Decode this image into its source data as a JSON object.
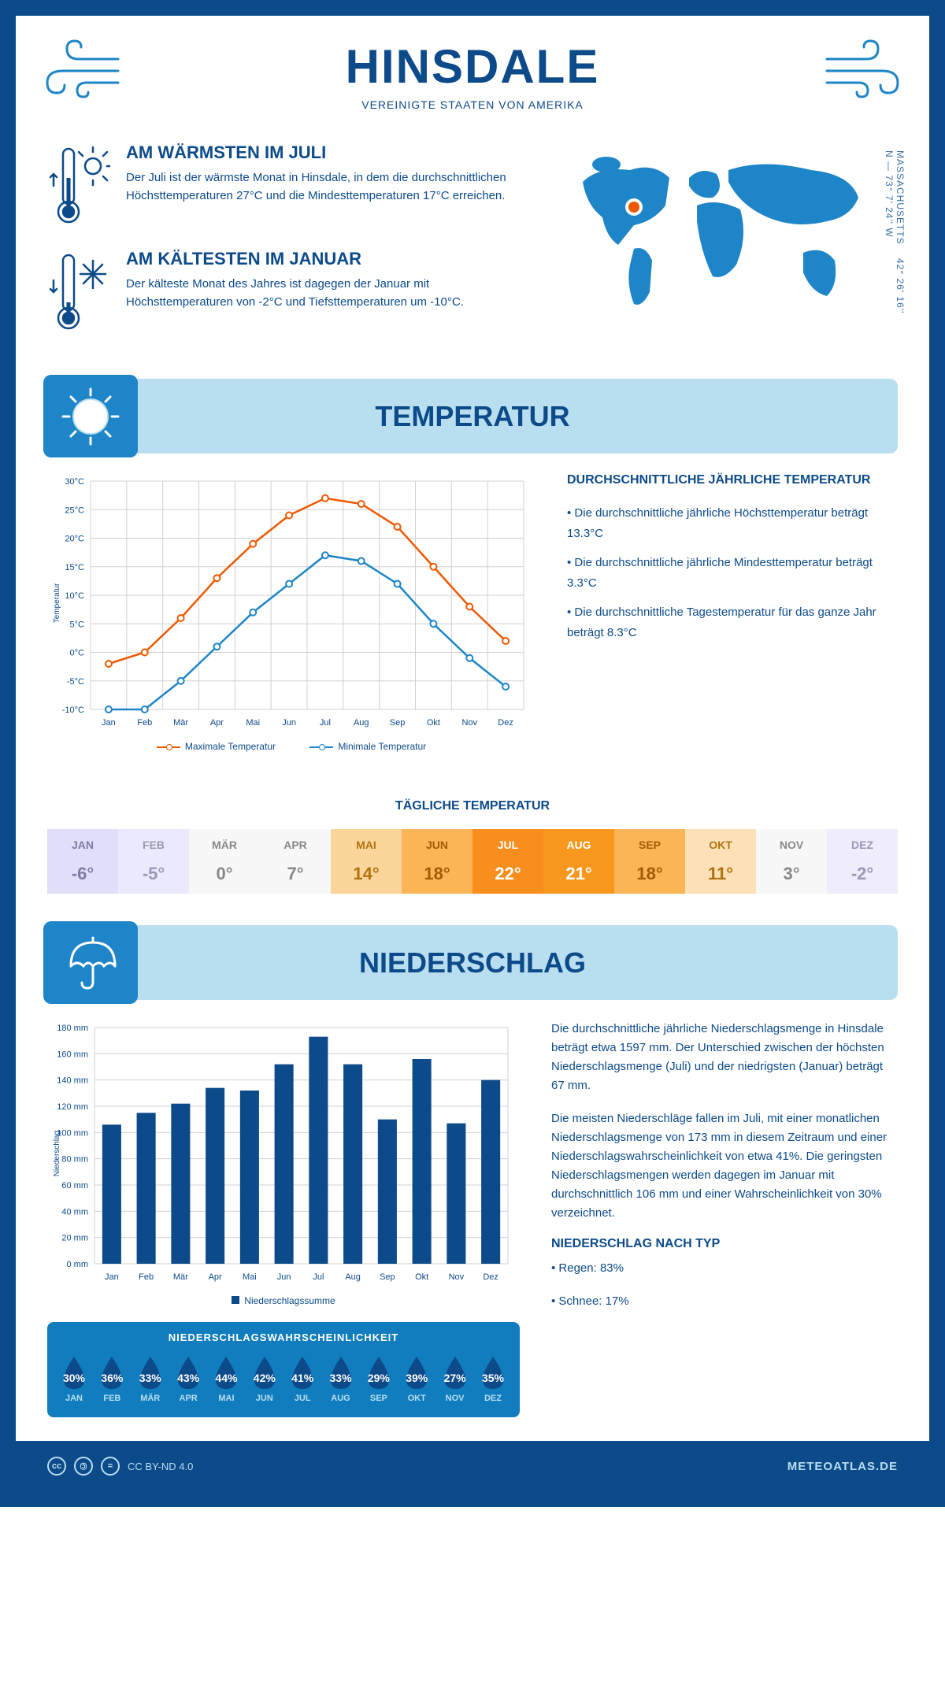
{
  "header": {
    "title": "HINSDALE",
    "subtitle": "VEREINIGTE STAATEN VON AMERIKA"
  },
  "coords": {
    "text": "42° 26' 16'' N — 73° 7' 24'' W",
    "region": "MASSACHUSETTS"
  },
  "hot": {
    "title": "AM WÄRMSTEN IM JULI",
    "body": "Der Juli ist der wärmste Monat in Hinsdale, in dem die durchschnittlichen Höchsttemperaturen 27°C und die Mindesttemperaturen 17°C erreichen."
  },
  "cold": {
    "title": "AM KÄLTESTEN IM JANUAR",
    "body": "Der kälteste Monat des Jahres ist dagegen der Januar mit Höchsttemperaturen von -2°C und Tiefsttemperaturen um -10°C."
  },
  "temp_section_title": "TEMPERATUR",
  "temp_chart": {
    "months": [
      "Jan",
      "Feb",
      "Mär",
      "Apr",
      "Mai",
      "Jun",
      "Jul",
      "Aug",
      "Sep",
      "Okt",
      "Nov",
      "Dez"
    ],
    "max": [
      -2,
      0,
      6,
      13,
      19,
      24,
      27,
      26,
      22,
      15,
      8,
      2
    ],
    "min": [
      -10,
      -10,
      -5,
      1,
      7,
      12,
      17,
      16,
      12,
      5,
      -1,
      -6
    ],
    "max_color": "#ed5903",
    "min_color": "#1e85c8",
    "ymin": -10,
    "ymax": 30,
    "ystep": 5,
    "yaxis_label": "Temperatur",
    "grid_color": "#d0d0d0",
    "legend_max": "Maximale Temperatur",
    "legend_min": "Minimale Temperatur"
  },
  "temp_text": {
    "title": "DURCHSCHNITTLICHE JÄHRLICHE TEMPERATUR",
    "b1": "• Die durchschnittliche jährliche Höchsttemperatur beträgt 13.3°C",
    "b2": "• Die durchschnittliche jährliche Mindesttemperatur beträgt 3.3°C",
    "b3": "• Die durchschnittliche Tagestemperatur für das ganze Jahr beträgt 8.3°C"
  },
  "daily_temp_title": "TÄGLICHE TEMPERATUR",
  "daily_temps": [
    {
      "m": "JAN",
      "v": "-6°",
      "bg": "#e0defa",
      "fg": "#7d7ca5"
    },
    {
      "m": "FEB",
      "v": "-5°",
      "bg": "#ebeafc",
      "fg": "#9a98b8"
    },
    {
      "m": "MÄR",
      "v": "0°",
      "bg": "#f7f7f7",
      "fg": "#888888"
    },
    {
      "m": "APR",
      "v": "7°",
      "bg": "#f7f7f7",
      "fg": "#888888"
    },
    {
      "m": "MAI",
      "v": "14°",
      "bg": "#fcd59b",
      "fg": "#b07310"
    },
    {
      "m": "JUN",
      "v": "18°",
      "bg": "#fab557",
      "fg": "#a35c05"
    },
    {
      "m": "JUL",
      "v": "22°",
      "bg": "#f78e1e",
      "fg": "#ffffff"
    },
    {
      "m": "AUG",
      "v": "21°",
      "bg": "#f7971e",
      "fg": "#ffffff"
    },
    {
      "m": "SEP",
      "v": "18°",
      "bg": "#fab557",
      "fg": "#a35c05"
    },
    {
      "m": "OKT",
      "v": "11°",
      "bg": "#fce0b7",
      "fg": "#b07310"
    },
    {
      "m": "NOV",
      "v": "3°",
      "bg": "#f7f7f7",
      "fg": "#888888"
    },
    {
      "m": "DEZ",
      "v": "-2°",
      "bg": "#efedfc",
      "fg": "#9a98b8"
    }
  ],
  "precip_section_title": "NIEDERSCHLAG",
  "precip_chart": {
    "months": [
      "Jan",
      "Feb",
      "Mär",
      "Apr",
      "Mai",
      "Jun",
      "Jul",
      "Aug",
      "Sep",
      "Okt",
      "Nov",
      "Dez"
    ],
    "values": [
      106,
      115,
      122,
      134,
      132,
      152,
      173,
      152,
      110,
      156,
      107,
      140
    ],
    "bar_color": "#0c4a8a",
    "ymin": 0,
    "ymax": 180,
    "ystep": 20,
    "yaxis_label": "Niederschlag",
    "grid_color": "#d0d0d0",
    "legend": "Niederschlagssumme"
  },
  "precip_text": {
    "p1": "Die durchschnittliche jährliche Niederschlagsmenge in Hinsdale beträgt etwa 1597 mm. Der Unterschied zwischen der höchsten Niederschlagsmenge (Juli) und der niedrigsten (Januar) beträgt 67 mm.",
    "p2": "Die meisten Niederschläge fallen im Juli, mit einer monatlichen Niederschlagsmenge von 173 mm in diesem Zeitraum und einer Niederschlagswahrscheinlichkeit von etwa 41%. Die geringsten Niederschlagsmengen werden dagegen im Januar mit durchschnittlich 106 mm und einer Wahrscheinlichkeit von 30% verzeichnet.",
    "type_title": "NIEDERSCHLAG NACH TYP",
    "type1": "• Regen: 83%",
    "type2": "• Schnee: 17%"
  },
  "prob": {
    "title": "NIEDERSCHLAGSWAHRSCHEINLICHKEIT",
    "items": [
      {
        "m": "JAN",
        "p": "30%"
      },
      {
        "m": "FEB",
        "p": "36%"
      },
      {
        "m": "MÄR",
        "p": "33%"
      },
      {
        "m": "APR",
        "p": "43%"
      },
      {
        "m": "MAI",
        "p": "44%"
      },
      {
        "m": "JUN",
        "p": "42%"
      },
      {
        "m": "JUL",
        "p": "41%"
      },
      {
        "m": "AUG",
        "p": "33%"
      },
      {
        "m": "SEP",
        "p": "29%"
      },
      {
        "m": "OKT",
        "p": "39%"
      },
      {
        "m": "NOV",
        "p": "27%"
      },
      {
        "m": "DEZ",
        "p": "35%"
      }
    ]
  },
  "footer": {
    "license": "CC BY-ND 4.0",
    "site": "METEOATLAS.DE"
  }
}
